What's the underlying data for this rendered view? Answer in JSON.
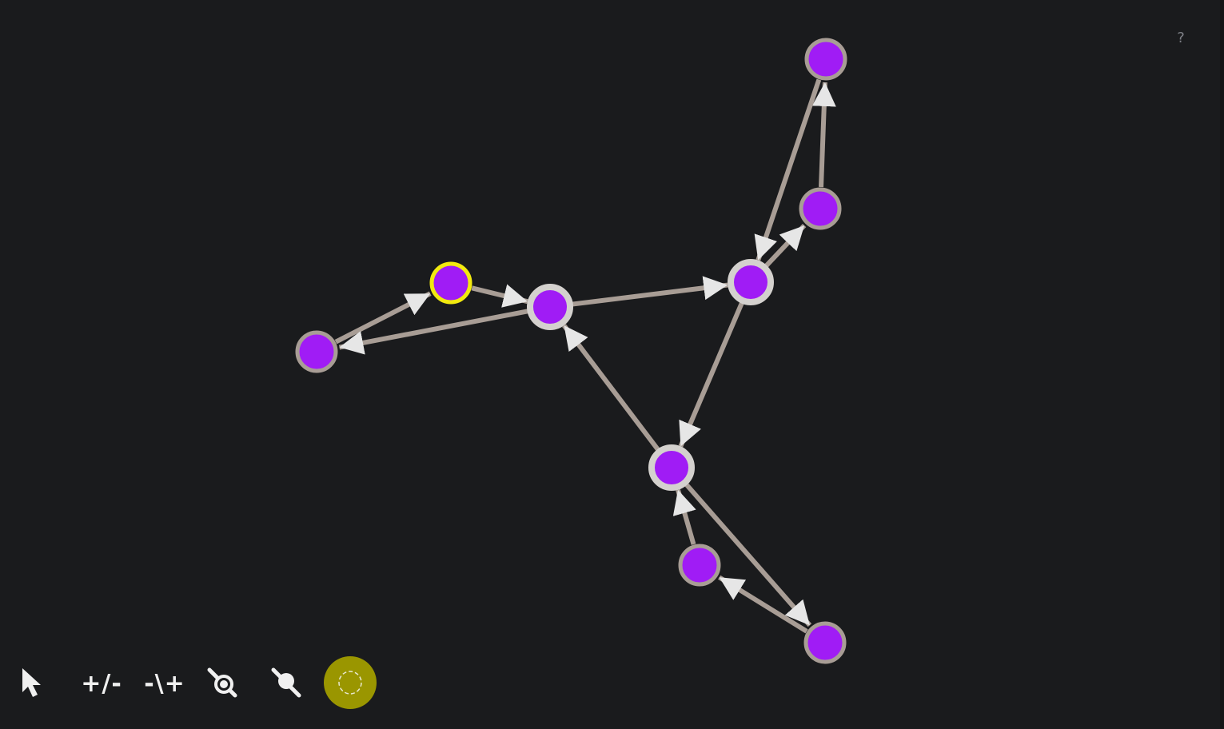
{
  "help": {
    "label": "?"
  },
  "toolbar": {
    "tools": [
      {
        "id": "select",
        "icon": "cursor-arrow-icon"
      },
      {
        "id": "add-remove-nodes",
        "label": "+/-"
      },
      {
        "id": "add-remove-edges",
        "label": "-\\+"
      },
      {
        "id": "detach-node",
        "icon": "node-detach-icon"
      },
      {
        "id": "attach-node",
        "icon": "node-attach-icon"
      },
      {
        "id": "spring-layout",
        "icon": "sun-burst-icon",
        "active": true
      }
    ]
  },
  "colors": {
    "background": "#1a1b1d",
    "node_fill": "#a01cf5",
    "node_border": "#a89d95",
    "node_border_hub": "#d4d1ce",
    "node_selected_border": "#f2ea0f",
    "edge": "#a89d95",
    "arrow": "#e6e6e6",
    "active_tool": "#9a9600"
  },
  "graph": {
    "nodes": [
      {
        "id": "n1",
        "selected": true
      },
      {
        "id": "n2"
      },
      {
        "id": "n3",
        "hub": true
      },
      {
        "id": "n4",
        "hub": true
      },
      {
        "id": "n5"
      },
      {
        "id": "n6"
      },
      {
        "id": "n7",
        "hub": true
      },
      {
        "id": "n8"
      },
      {
        "id": "n9"
      }
    ],
    "edges": [
      {
        "from": "n1",
        "to": "n3"
      },
      {
        "from": "n2",
        "to": "n1"
      },
      {
        "from": "n3",
        "to": "n2"
      },
      {
        "from": "n3",
        "to": "n4"
      },
      {
        "from": "n4",
        "to": "n5"
      },
      {
        "from": "n5",
        "to": "n6"
      },
      {
        "from": "n6",
        "to": "n4"
      },
      {
        "from": "n4",
        "to": "n7"
      },
      {
        "from": "n7",
        "to": "n3"
      },
      {
        "from": "n7",
        "to": "n9"
      },
      {
        "from": "n9",
        "to": "n8"
      },
      {
        "from": "n8",
        "to": "n7"
      }
    ]
  }
}
